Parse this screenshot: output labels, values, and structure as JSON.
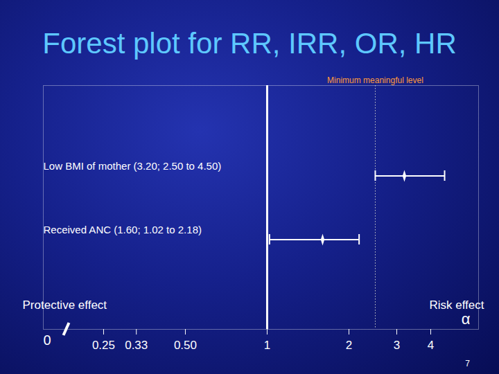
{
  "chart_data": {
    "type": "forest",
    "title": "Forest plot for RR, IRR, OR, HR",
    "log": "x",
    "xlim": [
      0.15,
      6
    ],
    "xticks": [
      0.25,
      0.33,
      {
        "value": 0.5,
        "label": "0.50"
      },
      1,
      2,
      3,
      4
    ],
    "x_start_label": "0",
    "x_end_label": "α",
    "null_line": 1,
    "reference_line": {
      "value": 2.5,
      "label": "Minimum meaningful level"
    },
    "left_label": "Protective effect",
    "right_label": "Risk effect",
    "marker": "diamond",
    "color": "#ffffff",
    "rows": [
      {
        "label": "Low BMI of mother (3.20; 2.50 to 4.50)",
        "estimate": 3.2,
        "lower": 2.5,
        "upper": 4.5
      },
      {
        "label": "Received ANC (1.60; 1.02 to 2.18)",
        "estimate": 1.6,
        "lower": 1.02,
        "upper": 2.18
      }
    ],
    "page_number": "7"
  }
}
